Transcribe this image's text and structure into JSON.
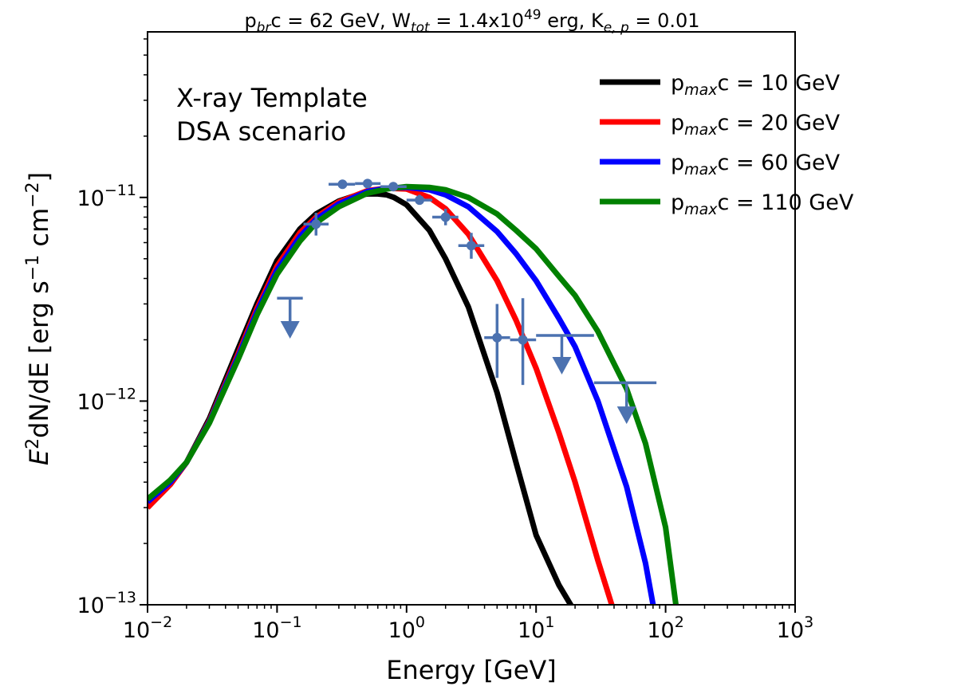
{
  "chart_data": {
    "type": "line",
    "title_parts": {
      "p1": "p",
      "p1_sub": "br",
      "p1_rest": "c = 62 GeV, W",
      "w_sub": "tot",
      "w_rest": " = 1.4x10",
      "w_sup": "49",
      "w_unit": " erg, K",
      "k_sub": "e, p",
      "k_rest": " = 0.01"
    },
    "annotation": [
      "X-ray Template",
      "DSA scenario"
    ],
    "xlabel": "Energy [GeV]",
    "ylabel": {
      "e": "E",
      "e_sup": "2",
      "mid": "dN/dE [erg s",
      "s_sup": "−1",
      "cm": " cm",
      "cm_sup": "−2",
      "end": "]"
    },
    "x_scale": "log",
    "y_scale": "log",
    "xlim": [
      0.01,
      1000
    ],
    "ylim": [
      1e-13,
      6.5e-11
    ],
    "x_ticks": [
      {
        "value": 0.01,
        "base": "10",
        "exp": "−2"
      },
      {
        "value": 0.1,
        "base": "10",
        "exp": "−1"
      },
      {
        "value": 1,
        "base": "10",
        "exp": "0"
      },
      {
        "value": 10,
        "base": "10",
        "exp": "1"
      },
      {
        "value": 100,
        "base": "10",
        "exp": "2"
      },
      {
        "value": 1000,
        "base": "10",
        "exp": "3"
      }
    ],
    "y_ticks": [
      {
        "value": 1e-13,
        "base": "10",
        "exp": "−13"
      },
      {
        "value": 1e-12,
        "base": "10",
        "exp": "−12"
      },
      {
        "value": 1e-11,
        "base": "10",
        "exp": "−11"
      }
    ],
    "legend_position": "top-right",
    "series": [
      {
        "name": "pmaxc = 10 GeV",
        "label_pre": "p",
        "label_sub": "max",
        "label_post": "c = 10 GeV",
        "color": "#000000",
        "x": [
          0.01,
          0.015,
          0.02,
          0.03,
          0.05,
          0.07,
          0.1,
          0.15,
          0.2,
          0.3,
          0.4,
          0.5,
          0.6,
          0.7,
          0.8,
          1,
          1.5,
          2,
          3,
          5,
          7,
          10,
          15,
          20
        ],
        "y": [
          3e-13,
          3.9e-13,
          5e-13,
          8.2e-13,
          1.8e-12,
          3e-12,
          4.9e-12,
          7e-12,
          8.3e-12,
          9.6e-12,
          1.02e-11,
          1.04e-11,
          1.04e-11,
          1.03e-11,
          1e-11,
          9.2e-12,
          6.9e-12,
          5e-12,
          2.9e-12,
          1.1e-12,
          5e-13,
          2.2e-13,
          1.25e-13,
          9.2e-14
        ]
      },
      {
        "name": "pmaxc = 20 GeV",
        "label_pre": "p",
        "label_sub": "max",
        "label_post": "c = 20 GeV",
        "color": "#ff0000",
        "x": [
          0.01,
          0.015,
          0.02,
          0.03,
          0.05,
          0.07,
          0.1,
          0.15,
          0.2,
          0.3,
          0.5,
          0.7,
          1,
          1.5,
          2,
          3,
          5,
          7,
          10,
          15,
          20,
          30,
          40
        ],
        "y": [
          3e-13,
          3.9e-13,
          5e-13,
          8e-13,
          1.7e-12,
          2.85e-12,
          4.6e-12,
          6.7e-12,
          8e-12,
          9.5e-12,
          1.08e-11,
          1.11e-11,
          1.1e-11,
          1e-11,
          8.8e-12,
          6.6e-12,
          3.9e-12,
          2.5e-12,
          1.45e-12,
          7e-13,
          4e-13,
          1.65e-13,
          9.2e-14
        ]
      },
      {
        "name": "pmaxc = 60 GeV",
        "label_pre": "p",
        "label_sub": "max",
        "label_post": "c = 60 GeV",
        "color": "#0000ff",
        "x": [
          0.01,
          0.015,
          0.02,
          0.03,
          0.05,
          0.07,
          0.1,
          0.15,
          0.2,
          0.3,
          0.5,
          0.7,
          1,
          1.5,
          2,
          3,
          5,
          7,
          10,
          15,
          20,
          30,
          50,
          70,
          80
        ],
        "y": [
          3.2e-13,
          4e-13,
          5e-13,
          7.9e-13,
          1.65e-12,
          2.75e-12,
          4.4e-12,
          6.4e-12,
          7.8e-12,
          9.3e-12,
          1.07e-11,
          1.11e-11,
          1.12e-11,
          1.09e-11,
          1.03e-11,
          9e-12,
          6.8e-12,
          5.3e-12,
          3.9e-12,
          2.55e-12,
          1.85e-12,
          1e-12,
          3.8e-13,
          1.6e-13,
          1e-13
        ]
      },
      {
        "name": "pmaxc = 110 GeV",
        "label_pre": "p",
        "label_sub": "max",
        "label_post": "c = 110 GeV",
        "color": "#008000",
        "x": [
          0.01,
          0.015,
          0.02,
          0.03,
          0.05,
          0.07,
          0.1,
          0.15,
          0.2,
          0.3,
          0.5,
          0.7,
          1,
          1.5,
          2,
          3,
          5,
          7,
          10,
          15,
          20,
          30,
          50,
          70,
          100,
          120
        ],
        "y": [
          3.3e-13,
          4.1e-13,
          5e-13,
          7.8e-13,
          1.6e-12,
          2.65e-12,
          4.2e-12,
          6.1e-12,
          7.5e-12,
          9e-12,
          1.05e-11,
          1.1e-11,
          1.13e-11,
          1.12e-11,
          1.09e-11,
          1e-11,
          8.3e-12,
          6.9e-12,
          5.6e-12,
          4.1e-12,
          3.3e-12,
          2.2e-12,
          1.15e-12,
          6.2e-13,
          2.4e-13,
          1e-13
        ]
      }
    ],
    "data_points": {
      "color": "#4c72b0",
      "points": [
        {
          "x": 0.2,
          "y": 7.4e-12,
          "xerr": [
            0.16,
            0.25
          ],
          "yerr": [
            6.5e-12,
            8.4e-12
          ]
        },
        {
          "x": 0.32,
          "y": 1.16e-11,
          "xerr": [
            0.25,
            0.4
          ]
        },
        {
          "x": 0.5,
          "y": 1.17e-11,
          "xerr": [
            0.4,
            0.63
          ]
        },
        {
          "x": 0.79,
          "y": 1.13e-11,
          "xerr": [
            0.63,
            1.0
          ]
        },
        {
          "x": 1.26,
          "y": 9.7e-12,
          "xerr": [
            1.0,
            1.58
          ],
          "yerr": [
            9.2e-12,
            1.03e-11
          ]
        },
        {
          "x": 2.0,
          "y": 8e-12,
          "xerr": [
            1.58,
            2.51
          ],
          "yerr": [
            7.3e-12,
            8.8e-12
          ]
        },
        {
          "x": 3.16,
          "y": 5.8e-12,
          "xerr": [
            2.51,
            3.98
          ],
          "yerr": [
            5e-12,
            6.7e-12
          ]
        },
        {
          "x": 5.0,
          "y": 2.05e-12,
          "xerr": [
            3.98,
            6.3
          ],
          "yerr": [
            1.3e-12,
            3e-12
          ]
        },
        {
          "x": 7.9,
          "y": 2e-12,
          "xerr": [
            6.3,
            10.0
          ],
          "yerr": [
            1.2e-12,
            3.2e-12
          ]
        }
      ],
      "upper_limits": [
        {
          "x": 0.126,
          "y": 3.2e-12,
          "xerr": [
            0.1,
            0.158
          ],
          "arrow_to": 2.1e-12
        },
        {
          "x": 15.8,
          "y": 2.1e-12,
          "xerr": [
            10,
            28
          ],
          "arrow_to": 1.4e-12
        },
        {
          "x": 50,
          "y": 1.23e-12,
          "xerr": [
            28,
            85
          ],
          "arrow_to": 8e-13
        }
      ]
    }
  }
}
